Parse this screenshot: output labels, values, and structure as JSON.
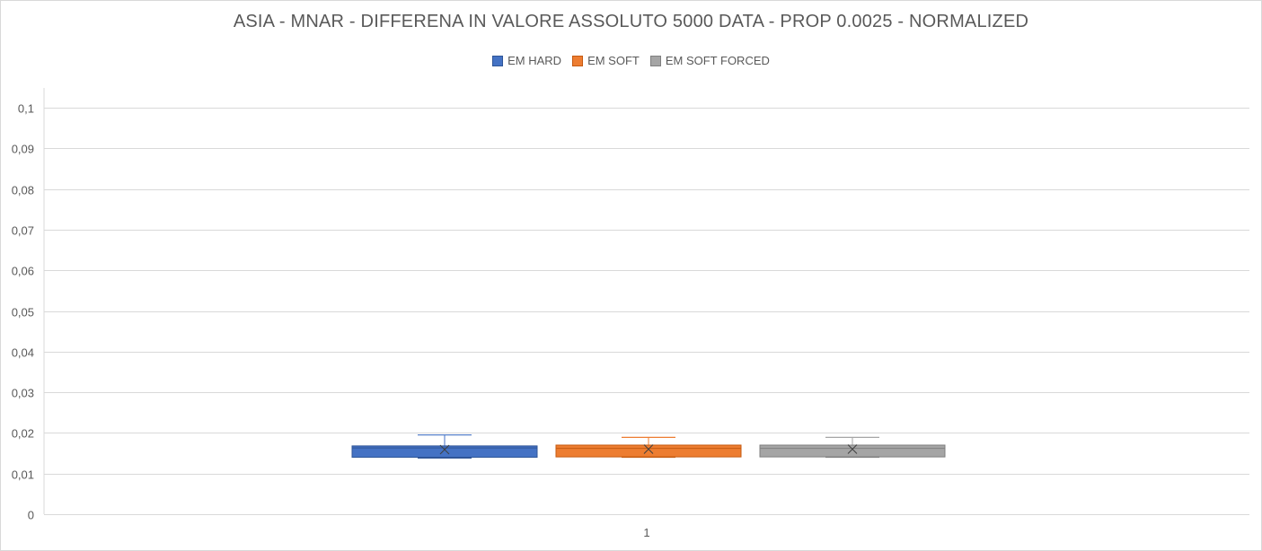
{
  "chart_data": {
    "type": "box",
    "title": "ASIA - MNAR - DIFFERENA IN VALORE ASSOLUTO 5000 DATA - PROP 0.0025 - NORMALIZED",
    "categories": [
      "1"
    ],
    "ylim": [
      0,
      0.1
    ],
    "yticks": [
      "0",
      "0,01",
      "0,02",
      "0,03",
      "0,04",
      "0,05",
      "0,06",
      "0,07",
      "0,08",
      "0,09",
      "0,1"
    ],
    "yticks_values": [
      0,
      0.01,
      0.02,
      0.03,
      0.04,
      0.05,
      0.06,
      0.07,
      0.08,
      0.09,
      0.1
    ],
    "grid": true,
    "legend_position": "top",
    "series": [
      {
        "name": "EM HARD",
        "color": "#4472c4",
        "stroke": "#2f5597",
        "min": 0.0138,
        "q1": 0.014,
        "median": 0.0163,
        "q3": 0.0168,
        "max": 0.0195,
        "mean": 0.0159
      },
      {
        "name": "EM SOFT",
        "color": "#ed7d31",
        "stroke": "#c55a11",
        "min": 0.014,
        "q1": 0.0141,
        "median": 0.0162,
        "q3": 0.017,
        "max": 0.0189,
        "mean": 0.016
      },
      {
        "name": "EM SOFT FORCED",
        "color": "#a5a5a5",
        "stroke": "#7f7f7f",
        "min": 0.014,
        "q1": 0.0141,
        "median": 0.0162,
        "q3": 0.017,
        "max": 0.0189,
        "mean": 0.016
      }
    ]
  }
}
